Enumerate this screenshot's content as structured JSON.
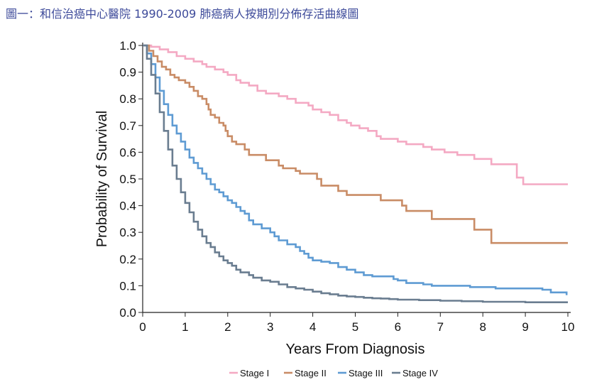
{
  "title": "圖一：和信治癌中心醫院 1990-2009 肺癌病人按期別分佈存活曲線圖",
  "chart_data": {
    "type": "line",
    "step": true,
    "xlabel": "Years From Diagnosis",
    "ylabel": "Probability of Survival",
    "xlim": [
      0,
      10
    ],
    "ylim": [
      0,
      1
    ],
    "x_ticks": [
      "0",
      "1",
      "2",
      "3",
      "4",
      "5",
      "6",
      "7",
      "8",
      "9",
      "10"
    ],
    "y_ticks": [
      "0.0",
      "0.1",
      "0.2",
      "0.3",
      "0.4",
      "0.5",
      "0.6",
      "0.7",
      "0.8",
      "0.9",
      "1.0"
    ],
    "grid": false,
    "legend_position": "bottom",
    "series": [
      {
        "name": "Stage I",
        "color": "#f4a9c3",
        "points": [
          [
            0,
            1.0
          ],
          [
            0.2,
            0.995
          ],
          [
            0.4,
            0.985
          ],
          [
            0.6,
            0.975
          ],
          [
            0.8,
            0.96
          ],
          [
            1.0,
            0.95
          ],
          [
            1.2,
            0.94
          ],
          [
            1.4,
            0.93
          ],
          [
            1.5,
            0.92
          ],
          [
            1.7,
            0.91
          ],
          [
            1.9,
            0.9
          ],
          [
            2.0,
            0.89
          ],
          [
            2.2,
            0.87
          ],
          [
            2.3,
            0.86
          ],
          [
            2.5,
            0.85
          ],
          [
            2.7,
            0.83
          ],
          [
            2.9,
            0.82
          ],
          [
            3.2,
            0.81
          ],
          [
            3.4,
            0.8
          ],
          [
            3.6,
            0.785
          ],
          [
            3.9,
            0.775
          ],
          [
            4.0,
            0.76
          ],
          [
            4.2,
            0.75
          ],
          [
            4.4,
            0.74
          ],
          [
            4.6,
            0.72
          ],
          [
            4.8,
            0.71
          ],
          [
            4.9,
            0.7
          ],
          [
            5.1,
            0.69
          ],
          [
            5.3,
            0.68
          ],
          [
            5.5,
            0.66
          ],
          [
            5.6,
            0.65
          ],
          [
            6.0,
            0.64
          ],
          [
            6.2,
            0.63
          ],
          [
            6.6,
            0.62
          ],
          [
            6.8,
            0.61
          ],
          [
            7.1,
            0.6
          ],
          [
            7.4,
            0.59
          ],
          [
            7.8,
            0.575
          ],
          [
            8.2,
            0.555
          ],
          [
            8.8,
            0.505
          ],
          [
            8.95,
            0.48
          ],
          [
            10,
            0.48
          ]
        ]
      },
      {
        "name": "Stage II",
        "color": "#c98c66",
        "points": [
          [
            0,
            1.0
          ],
          [
            0.15,
            0.98
          ],
          [
            0.25,
            0.96
          ],
          [
            0.35,
            0.94
          ],
          [
            0.45,
            0.92
          ],
          [
            0.55,
            0.91
          ],
          [
            0.65,
            0.89
          ],
          [
            0.75,
            0.88
          ],
          [
            0.85,
            0.87
          ],
          [
            1.0,
            0.86
          ],
          [
            1.1,
            0.845
          ],
          [
            1.2,
            0.83
          ],
          [
            1.3,
            0.81
          ],
          [
            1.4,
            0.8
          ],
          [
            1.5,
            0.78
          ],
          [
            1.55,
            0.76
          ],
          [
            1.6,
            0.74
          ],
          [
            1.7,
            0.73
          ],
          [
            1.8,
            0.71
          ],
          [
            1.9,
            0.7
          ],
          [
            1.95,
            0.68
          ],
          [
            2.0,
            0.66
          ],
          [
            2.1,
            0.64
          ],
          [
            2.2,
            0.63
          ],
          [
            2.4,
            0.61
          ],
          [
            2.5,
            0.59
          ],
          [
            2.9,
            0.57
          ],
          [
            3.2,
            0.55
          ],
          [
            3.3,
            0.54
          ],
          [
            3.6,
            0.53
          ],
          [
            3.7,
            0.52
          ],
          [
            4.1,
            0.5
          ],
          [
            4.2,
            0.475
          ],
          [
            4.6,
            0.455
          ],
          [
            4.8,
            0.44
          ],
          [
            5.6,
            0.42
          ],
          [
            6.1,
            0.4
          ],
          [
            6.2,
            0.38
          ],
          [
            6.8,
            0.35
          ],
          [
            7.8,
            0.31
          ],
          [
            8.2,
            0.26
          ],
          [
            10,
            0.26
          ]
        ]
      },
      {
        "name": "Stage III",
        "color": "#5e9bd3",
        "points": [
          [
            0,
            1.0
          ],
          [
            0.1,
            0.97
          ],
          [
            0.2,
            0.93
          ],
          [
            0.3,
            0.88
          ],
          [
            0.4,
            0.83
          ],
          [
            0.5,
            0.78
          ],
          [
            0.6,
            0.74
          ],
          [
            0.7,
            0.7
          ],
          [
            0.8,
            0.67
          ],
          [
            0.9,
            0.64
          ],
          [
            1.0,
            0.61
          ],
          [
            1.1,
            0.58
          ],
          [
            1.2,
            0.56
          ],
          [
            1.3,
            0.54
          ],
          [
            1.4,
            0.52
          ],
          [
            1.5,
            0.5
          ],
          [
            1.6,
            0.48
          ],
          [
            1.7,
            0.46
          ],
          [
            1.8,
            0.45
          ],
          [
            1.9,
            0.435
          ],
          [
            2.0,
            0.42
          ],
          [
            2.1,
            0.41
          ],
          [
            2.2,
            0.395
          ],
          [
            2.3,
            0.38
          ],
          [
            2.4,
            0.37
          ],
          [
            2.5,
            0.345
          ],
          [
            2.6,
            0.33
          ],
          [
            2.8,
            0.315
          ],
          [
            3.0,
            0.3
          ],
          [
            3.1,
            0.285
          ],
          [
            3.2,
            0.27
          ],
          [
            3.4,
            0.255
          ],
          [
            3.6,
            0.245
          ],
          [
            3.7,
            0.23
          ],
          [
            3.8,
            0.22
          ],
          [
            3.9,
            0.205
          ],
          [
            4.0,
            0.195
          ],
          [
            4.2,
            0.19
          ],
          [
            4.4,
            0.185
          ],
          [
            4.6,
            0.17
          ],
          [
            4.8,
            0.16
          ],
          [
            5.0,
            0.15
          ],
          [
            5.2,
            0.14
          ],
          [
            5.4,
            0.135
          ],
          [
            5.9,
            0.125
          ],
          [
            6.0,
            0.12
          ],
          [
            6.2,
            0.11
          ],
          [
            6.6,
            0.105
          ],
          [
            6.8,
            0.1
          ],
          [
            7.7,
            0.095
          ],
          [
            8.3,
            0.09
          ],
          [
            9.4,
            0.085
          ],
          [
            9.6,
            0.075
          ],
          [
            9.95,
            0.075
          ],
          [
            9.97,
            0.065
          ]
        ]
      },
      {
        "name": "Stage IV",
        "color": "#6a7d90",
        "points": [
          [
            0,
            1.0
          ],
          [
            0.1,
            0.95
          ],
          [
            0.2,
            0.89
          ],
          [
            0.3,
            0.82
          ],
          [
            0.4,
            0.75
          ],
          [
            0.5,
            0.68
          ],
          [
            0.6,
            0.61
          ],
          [
            0.7,
            0.55
          ],
          [
            0.8,
            0.5
          ],
          [
            0.9,
            0.45
          ],
          [
            1.0,
            0.41
          ],
          [
            1.1,
            0.375
          ],
          [
            1.2,
            0.34
          ],
          [
            1.3,
            0.31
          ],
          [
            1.4,
            0.285
          ],
          [
            1.5,
            0.26
          ],
          [
            1.6,
            0.245
          ],
          [
            1.7,
            0.225
          ],
          [
            1.8,
            0.21
          ],
          [
            1.9,
            0.195
          ],
          [
            2.0,
            0.185
          ],
          [
            2.1,
            0.175
          ],
          [
            2.2,
            0.16
          ],
          [
            2.3,
            0.15
          ],
          [
            2.5,
            0.14
          ],
          [
            2.6,
            0.13
          ],
          [
            2.8,
            0.12
          ],
          [
            3.0,
            0.115
          ],
          [
            3.2,
            0.105
          ],
          [
            3.4,
            0.095
          ],
          [
            3.6,
            0.09
          ],
          [
            3.8,
            0.085
          ],
          [
            4.0,
            0.078
          ],
          [
            4.2,
            0.072
          ],
          [
            4.4,
            0.068
          ],
          [
            4.6,
            0.063
          ],
          [
            4.8,
            0.06
          ],
          [
            5.0,
            0.058
          ],
          [
            5.2,
            0.055
          ],
          [
            5.4,
            0.053
          ],
          [
            5.6,
            0.052
          ],
          [
            5.8,
            0.05
          ],
          [
            6.0,
            0.048
          ],
          [
            6.5,
            0.046
          ],
          [
            7.0,
            0.044
          ],
          [
            7.5,
            0.042
          ],
          [
            8.0,
            0.04
          ],
          [
            9.0,
            0.038
          ],
          [
            10,
            0.038
          ]
        ]
      }
    ]
  }
}
